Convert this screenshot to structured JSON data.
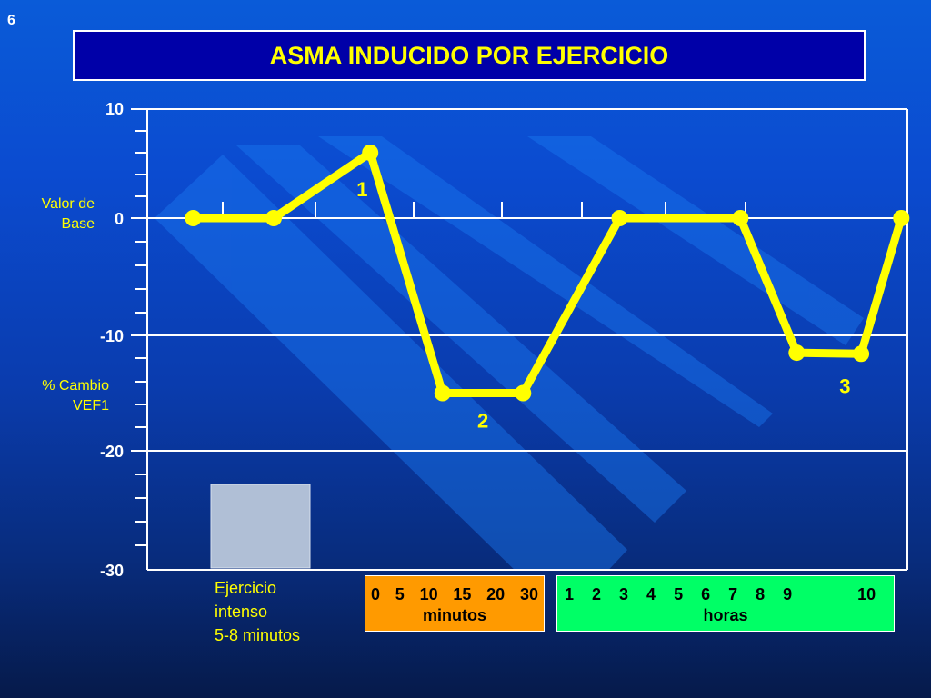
{
  "slide_number": "6",
  "title": "ASMA INDUCIDO POR EJERCICIO",
  "labels": {
    "baseline": [
      "Valor de",
      "Base"
    ],
    "change": [
      "% Cambio",
      "VEF1"
    ],
    "exercise": [
      "Ejercicio",
      "intenso",
      "5-8 minutos"
    ]
  },
  "minutes_box": {
    "ticks": [
      "0",
      "5",
      "10",
      "15",
      "20",
      "30"
    ],
    "unit": "minutos"
  },
  "hours_box": {
    "ticks": [
      "1",
      "2",
      "3",
      "4",
      "5",
      "6",
      "7",
      "8",
      "9",
      "10"
    ],
    "unit": "horas"
  },
  "colors": {
    "line": "#ffff00",
    "title_bg": "#0000a8",
    "minutes_bg": "#ff9a00",
    "hours_bg": "#00ff66",
    "exercise_block": "#b0bfd6"
  },
  "chart_data": {
    "type": "line",
    "ylim": [
      -30,
      10
    ],
    "y_ticks": [
      10,
      0,
      -10,
      -20,
      -30
    ],
    "grid": true,
    "series": [
      {
        "points": [
          {
            "x": 1,
            "y": 0
          },
          {
            "x": 2,
            "y": 0
          },
          {
            "x": 3.2,
            "y": 6
          },
          {
            "x": 4.1,
            "y": -15
          },
          {
            "x": 5.1,
            "y": -15
          },
          {
            "x": 6.3,
            "y": 0
          },
          {
            "x": 7.8,
            "y": 0
          },
          {
            "x": 8.5,
            "y": -11.5
          },
          {
            "x": 9.3,
            "y": -11.6
          },
          {
            "x": 9.8,
            "y": 0
          }
        ]
      }
    ],
    "annotations": [
      {
        "text": "1",
        "x": 3.1,
        "y": 2
      },
      {
        "text": "2",
        "x": 4.6,
        "y": -18
      },
      {
        "text": "3",
        "x": 9.1,
        "y": -15
      }
    ]
  }
}
